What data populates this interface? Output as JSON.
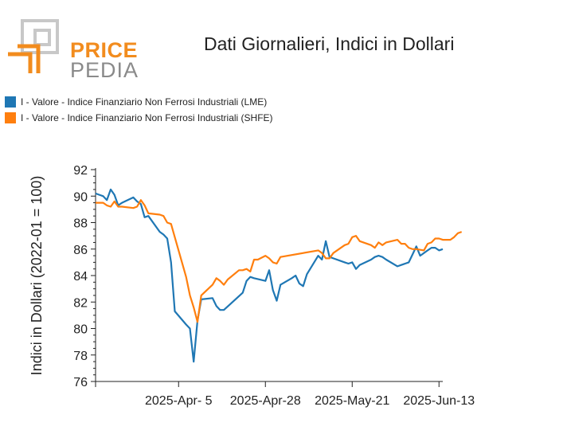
{
  "logo": {
    "line1": "PRICE",
    "line2": "PEDIA"
  },
  "colors": {
    "lme": "#1f77b4",
    "shfe": "#ff7f0e",
    "logo_orange": "#f28c1e",
    "logo_gray": "#8a8a8a"
  },
  "chart_data": {
    "type": "line",
    "title": "Dati Giornalieri, Indici in Dollari",
    "ylabel": "Indici in Dollari (2022-01 = 100)",
    "xlabel": "",
    "ylim": [
      76,
      92
    ],
    "yticks": [
      76,
      78,
      80,
      82,
      84,
      86,
      88,
      90,
      92
    ],
    "xlim": [
      "2025-03-14",
      "2025-06-14"
    ],
    "xticks": [
      "2025-Apr- 5",
      "2025-Apr-28",
      "2025-May-21",
      "2025-Jun-13"
    ],
    "xtick_dates": [
      "2025-04-05",
      "2025-04-28",
      "2025-05-21",
      "2025-06-13"
    ],
    "legend_position": "top-left",
    "grid": false,
    "series": [
      {
        "name": "I - Valore - Indice Finanziario Non Ferrosi Industriali (LME)",
        "color": "#1f77b4",
        "points": [
          [
            "2025-03-14",
            90.2
          ],
          [
            "2025-03-15",
            90.1
          ],
          [
            "2025-03-16",
            90.0
          ],
          [
            "2025-03-17",
            89.7
          ],
          [
            "2025-03-18",
            90.5
          ],
          [
            "2025-03-19",
            90.1
          ],
          [
            "2025-03-20",
            89.3
          ],
          [
            "2025-03-21",
            89.5
          ],
          [
            "2025-03-24",
            89.9
          ],
          [
            "2025-03-25",
            89.6
          ],
          [
            "2025-03-26",
            89.4
          ],
          [
            "2025-03-27",
            88.4
          ],
          [
            "2025-03-28",
            88.5
          ],
          [
            "2025-03-31",
            87.3
          ],
          [
            "2025-04-01",
            87.1
          ],
          [
            "2025-04-02",
            86.8
          ],
          [
            "2025-04-03",
            85.0
          ],
          [
            "2025-04-04",
            81.3
          ],
          [
            "2025-04-07",
            80.3
          ],
          [
            "2025-04-08",
            80.0
          ],
          [
            "2025-04-09",
            77.5
          ],
          [
            "2025-04-10",
            80.6
          ],
          [
            "2025-04-11",
            82.2
          ],
          [
            "2025-04-14",
            82.3
          ],
          [
            "2025-04-15",
            81.7
          ],
          [
            "2025-04-16",
            81.4
          ],
          [
            "2025-04-17",
            81.4
          ],
          [
            "2025-04-22",
            82.7
          ],
          [
            "2025-04-23",
            83.6
          ],
          [
            "2025-04-24",
            83.9
          ],
          [
            "2025-04-25",
            83.8
          ],
          [
            "2025-04-28",
            83.6
          ],
          [
            "2025-04-29",
            84.4
          ],
          [
            "2025-04-30",
            82.9
          ],
          [
            "2025-05-01",
            82.1
          ],
          [
            "2025-05-02",
            83.3
          ],
          [
            "2025-05-05",
            83.8
          ],
          [
            "2025-05-06",
            84.0
          ],
          [
            "2025-05-07",
            83.4
          ],
          [
            "2025-05-08",
            83.2
          ],
          [
            "2025-05-09",
            84.1
          ],
          [
            "2025-05-12",
            85.5
          ],
          [
            "2025-05-13",
            85.2
          ],
          [
            "2025-05-14",
            86.6
          ],
          [
            "2025-05-15",
            85.4
          ],
          [
            "2025-05-16",
            85.3
          ],
          [
            "2025-05-19",
            85.0
          ],
          [
            "2025-05-20",
            84.9
          ],
          [
            "2025-05-21",
            85.0
          ],
          [
            "2025-05-22",
            84.5
          ],
          [
            "2025-05-23",
            84.8
          ],
          [
            "2025-05-26",
            85.2
          ],
          [
            "2025-05-27",
            85.4
          ],
          [
            "2025-05-28",
            85.5
          ],
          [
            "2025-05-29",
            85.4
          ],
          [
            "2025-05-30",
            85.2
          ],
          [
            "2025-06-02",
            84.7
          ],
          [
            "2025-06-03",
            84.8
          ],
          [
            "2025-06-05",
            85.0
          ],
          [
            "2025-06-06",
            85.6
          ],
          [
            "2025-06-07",
            86.2
          ],
          [
            "2025-06-08",
            85.5
          ],
          [
            "2025-06-10",
            85.9
          ],
          [
            "2025-06-11",
            86.1
          ],
          [
            "2025-06-12",
            86.1
          ],
          [
            "2025-06-13",
            85.9
          ],
          [
            "2025-06-14",
            86.0
          ]
        ]
      },
      {
        "name": "I - Valore - Indice Finanziario Non Ferrosi Industriali (SHFE)",
        "color": "#ff7f0e",
        "points": [
          [
            "2025-03-14",
            89.5
          ],
          [
            "2025-03-16",
            89.5
          ],
          [
            "2025-03-17",
            89.3
          ],
          [
            "2025-03-18",
            89.2
          ],
          [
            "2025-03-19",
            89.6
          ],
          [
            "2025-03-20",
            89.2
          ],
          [
            "2025-03-21",
            89.2
          ],
          [
            "2025-03-24",
            89.1
          ],
          [
            "2025-03-25",
            89.2
          ],
          [
            "2025-03-26",
            89.7
          ],
          [
            "2025-03-27",
            89.3
          ],
          [
            "2025-03-28",
            88.7
          ],
          [
            "2025-03-31",
            88.6
          ],
          [
            "2025-04-01",
            88.5
          ],
          [
            "2025-04-02",
            88.0
          ],
          [
            "2025-04-03",
            87.9
          ],
          [
            "2025-04-04",
            86.9
          ],
          [
            "2025-04-07",
            83.9
          ],
          [
            "2025-04-08",
            82.5
          ],
          [
            "2025-04-09",
            81.6
          ],
          [
            "2025-04-10",
            80.5
          ],
          [
            "2025-04-11",
            82.5
          ],
          [
            "2025-04-14",
            83.3
          ],
          [
            "2025-04-15",
            83.8
          ],
          [
            "2025-04-16",
            83.6
          ],
          [
            "2025-04-17",
            83.3
          ],
          [
            "2025-04-18",
            83.7
          ],
          [
            "2025-04-21",
            84.4
          ],
          [
            "2025-04-22",
            84.4
          ],
          [
            "2025-04-23",
            84.5
          ],
          [
            "2025-04-24",
            84.3
          ],
          [
            "2025-04-25",
            85.2
          ],
          [
            "2025-04-26",
            85.2
          ],
          [
            "2025-04-28",
            85.5
          ],
          [
            "2025-04-29",
            85.3
          ],
          [
            "2025-04-30",
            85.0
          ],
          [
            "2025-05-01",
            84.9
          ],
          [
            "2025-05-02",
            85.4
          ],
          [
            "2025-05-12",
            85.9
          ],
          [
            "2025-05-13",
            85.7
          ],
          [
            "2025-05-14",
            85.3
          ],
          [
            "2025-05-15",
            85.3
          ],
          [
            "2025-05-16",
            85.7
          ],
          [
            "2025-05-19",
            86.3
          ],
          [
            "2025-05-20",
            86.4
          ],
          [
            "2025-05-21",
            86.9
          ],
          [
            "2025-05-22",
            87.0
          ],
          [
            "2025-05-23",
            86.6
          ],
          [
            "2025-05-26",
            86.3
          ],
          [
            "2025-05-27",
            86.1
          ],
          [
            "2025-05-28",
            86.5
          ],
          [
            "2025-05-29",
            86.3
          ],
          [
            "2025-05-30",
            86.5
          ],
          [
            "2025-06-02",
            86.7
          ],
          [
            "2025-06-03",
            86.4
          ],
          [
            "2025-06-04",
            86.4
          ],
          [
            "2025-06-05",
            86.1
          ],
          [
            "2025-06-06",
            86.0
          ],
          [
            "2025-06-07",
            86.0
          ],
          [
            "2025-06-09",
            85.9
          ],
          [
            "2025-06-10",
            86.4
          ],
          [
            "2025-06-11",
            86.5
          ],
          [
            "2025-06-12",
            86.8
          ],
          [
            "2025-06-13",
            86.8
          ],
          [
            "2025-06-14",
            86.7
          ],
          [
            "2025-06-16",
            86.7
          ],
          [
            "2025-06-17",
            86.9
          ],
          [
            "2025-06-18",
            87.2
          ],
          [
            "2025-06-19",
            87.3
          ]
        ]
      }
    ]
  }
}
